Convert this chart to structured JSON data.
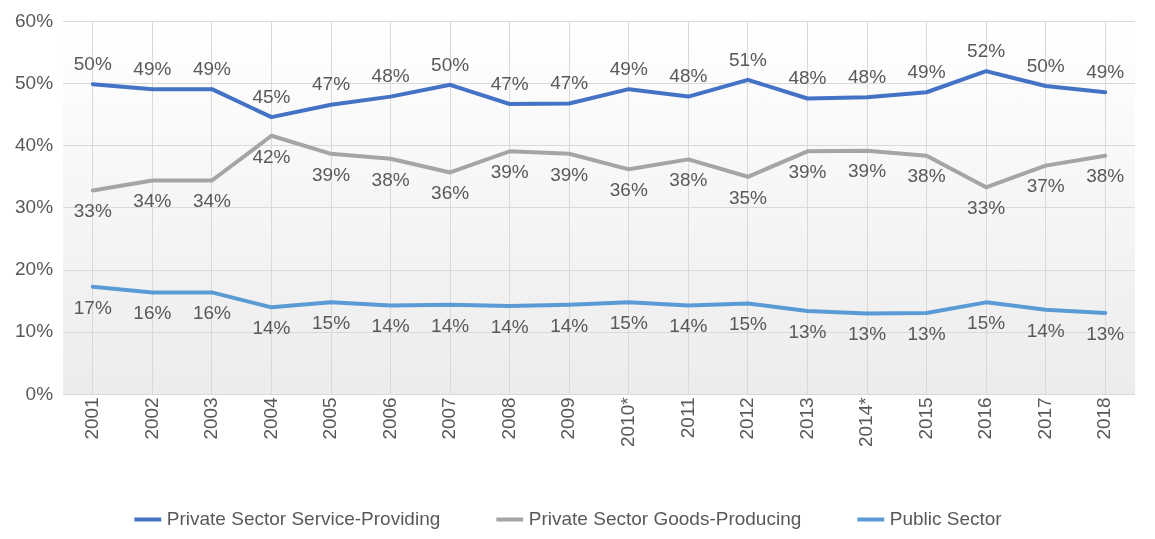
{
  "chart_data": {
    "type": "line",
    "categories": [
      "2001",
      "2002",
      "2003",
      "2004",
      "2005",
      "2006",
      "2007",
      "2008",
      "2009",
      "2010*",
      "2011",
      "2012",
      "2013",
      "2014*",
      "2015",
      "2016",
      "2017",
      "2018"
    ],
    "series": [
      {
        "name": "Private Sector Service-Providing",
        "color": "#4472c4",
        "values": [
          49.9,
          49.1,
          49.1,
          44.6,
          46.6,
          47.9,
          49.8,
          46.7,
          46.8,
          49.1,
          47.9,
          50.6,
          47.6,
          47.8,
          48.6,
          52.0,
          49.6,
          48.6
        ],
        "value_labels": [
          "50%",
          "49%",
          "49%",
          "45%",
          "47%",
          "48%",
          "50%",
          "47%",
          "47%",
          "49%",
          "48%",
          "51%",
          "48%",
          "48%",
          "49%",
          "52%",
          "50%",
          "49%"
        ]
      },
      {
        "name": "Private Sector Goods-Producing",
        "color": "#a5a5a5",
        "values": [
          32.8,
          34.4,
          34.4,
          41.6,
          38.7,
          37.9,
          35.7,
          39.1,
          38.7,
          36.2,
          37.8,
          35.0,
          39.1,
          39.2,
          38.4,
          33.3,
          36.8,
          38.4
        ],
        "value_labels": [
          "33%",
          "34%",
          "34%",
          "42%",
          "39%",
          "38%",
          "36%",
          "39%",
          "39%",
          "36%",
          "38%",
          "35%",
          "39%",
          "39%",
          "38%",
          "33%",
          "37%",
          "38%"
        ]
      },
      {
        "name": "Public Sector",
        "color": "#5b9bd5",
        "values": [
          17.3,
          16.4,
          16.4,
          14.0,
          14.8,
          14.3,
          14.4,
          14.2,
          14.4,
          14.8,
          14.3,
          14.6,
          13.4,
          13.0,
          13.1,
          14.8,
          13.6,
          13.1
        ],
        "value_labels": [
          "17%",
          "16%",
          "16%",
          "14%",
          "15%",
          "14%",
          "14%",
          "14%",
          "14%",
          "15%",
          "14%",
          "15%",
          "13%",
          "13%",
          "13%",
          "15%",
          "14%",
          "13%"
        ]
      }
    ],
    "ylim": [
      0,
      60
    ],
    "yticks": [
      {
        "value": 0,
        "label": "0%"
      },
      {
        "value": 10,
        "label": "10%"
      },
      {
        "value": 20,
        "label": "20%"
      },
      {
        "value": 30,
        "label": "30%"
      },
      {
        "value": 40,
        "label": "40%"
      },
      {
        "value": 50,
        "label": "50%"
      },
      {
        "value": 60,
        "label": "60%"
      }
    ],
    "grid": true,
    "legend": "bottom",
    "marker": "none",
    "line_style": "solid"
  }
}
